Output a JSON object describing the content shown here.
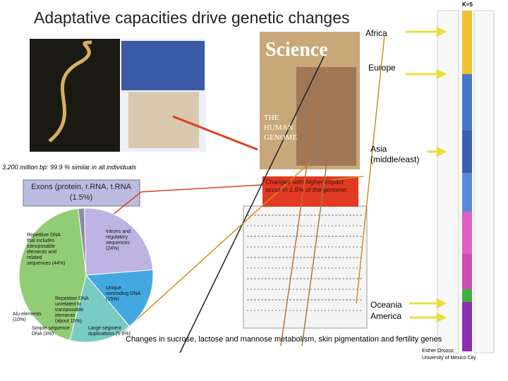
{
  "title": "Adaptative capacities drive genetic changes",
  "genome_caption": "3,200 million bp: 99.9 % similar in all individuals",
  "impact_box": "Changes with higher impact occur in 1.5% of the genome.",
  "science_cover": {
    "masthead": "Science",
    "headline": "THE HUMAN GENOME"
  },
  "regions": [
    "Africa",
    "Europe",
    "Asia (middle/east)",
    "Oceania",
    "America"
  ],
  "structure_label": "K=5",
  "footer": "Changes in sucrose, lactose and mannose metabolism, skin pigmentation and fertility genes",
  "credit": [
    "Esther Orozco",
    "University of Mexico City"
  ],
  "pie_annotations": [
    "Alu elements (10%)",
    "Simple sequence DNA (3%)",
    "Large-segment duplications (5-6%)"
  ],
  "chart_data": {
    "type": "pie",
    "categories": [
      "Exons (protein, r.RNA, t.RNA (1.5%)",
      "Introns and regulatory sequences (24%)",
      "Unique noncoding DNA (15%)",
      "Repetitive DNA unrelated to transposable elements (about 15%)",
      "Repetitive DNA that includes transposable elements and related sequences (44%)"
    ],
    "values": [
      1.5,
      24,
      15,
      15,
      44
    ],
    "colors": [
      "#8a8aa8",
      "#bdb4e4",
      "#44a8e0",
      "#78ccc4",
      "#92cc74"
    ]
  }
}
